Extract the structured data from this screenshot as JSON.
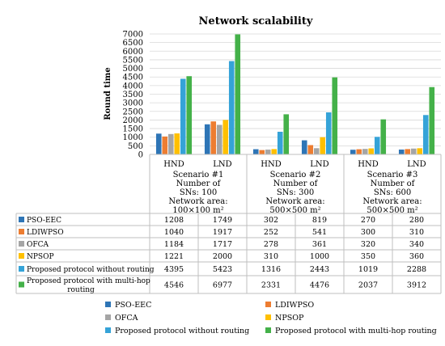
{
  "chart_data": {
    "type": "bar",
    "title": "Network scalability",
    "ylabel": "Round time",
    "ylim": [
      0,
      7000
    ],
    "yticks": [
      0,
      500,
      1000,
      1500,
      2000,
      2500,
      3000,
      3500,
      4000,
      4500,
      5000,
      5500,
      6000,
      6500,
      7000
    ],
    "grid": true,
    "legend_position": "bottom",
    "categories": [
      "HND",
      "LND",
      "HND",
      "LND",
      "HND",
      "LND"
    ],
    "groups": [
      {
        "lines": [
          "Scenario #1",
          "Number of",
          "SNs: 100",
          "Network area:",
          "100×100 m²"
        ]
      },
      {
        "lines": [
          "Scenario #2",
          "Number of",
          "SNs: 300",
          "Network area:",
          "500×500 m²"
        ]
      },
      {
        "lines": [
          "Scenario #3",
          "Number of",
          "SNs: 600",
          "Network area:",
          "500×500 m²"
        ]
      }
    ],
    "series": [
      {
        "name": "PSO-EEC",
        "color": "#2e75b6",
        "values": [
          1208,
          1749,
          302,
          819,
          270,
          280
        ]
      },
      {
        "name": "LDIWPSO",
        "color": "#ed7d31",
        "values": [
          1040,
          1917,
          252,
          541,
          300,
          310
        ]
      },
      {
        "name": "OFCA",
        "color": "#a5a5a5",
        "values": [
          1184,
          1717,
          278,
          361,
          320,
          340
        ]
      },
      {
        "name": "NPSOP",
        "color": "#ffc000",
        "values": [
          1221,
          2000,
          310,
          1000,
          350,
          360
        ]
      },
      {
        "name": "Proposed protocol without routing",
        "color": "#35a3d8",
        "values": [
          4395,
          5423,
          1316,
          2443,
          1019,
          2288
        ]
      },
      {
        "name": "Proposed protocol with multi-hop routing",
        "color": "#44b149",
        "values": [
          4546,
          6977,
          2331,
          4476,
          2037,
          3912
        ]
      }
    ]
  }
}
